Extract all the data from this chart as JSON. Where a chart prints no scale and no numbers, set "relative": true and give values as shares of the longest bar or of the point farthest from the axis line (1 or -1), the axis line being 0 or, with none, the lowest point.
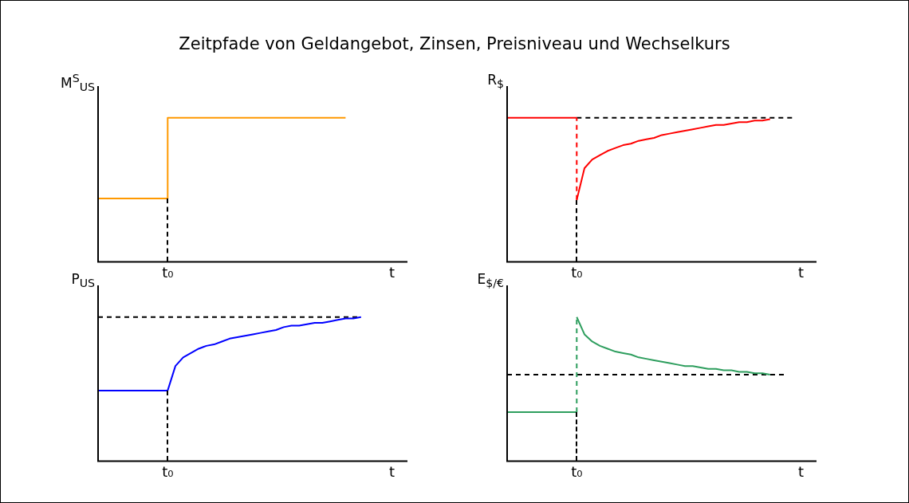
{
  "chart_data": [
    {
      "type": "step",
      "title": "Zeitpfade von Geldangebot, Zinsen, Preisniveau und Wechselkurs",
      "ylabel": "M$^{S}$$_{US}$",
      "relative": true,
      "categories": [
        null,
        null,
        null,
        null,
        null,
        null,
        null,
        null,
        null,
        "t₀",
        null,
        null,
        null,
        null,
        null,
        null,
        null,
        null,
        null,
        null,
        null,
        null,
        null,
        null,
        null,
        null,
        null,
        null,
        null,
        null,
        null,
        null,
        null,
        null,
        null,
        null,
        null,
        null,
        "t",
        null,
        null
      ],
      "series": [
        {
          "color": "#ff9900",
          "values": [
            0.44,
            0.44,
            0.44,
            0.44,
            0.44,
            0.44,
            0.44,
            0.44,
            0.44,
            1,
            1,
            1,
            1,
            1,
            1,
            1,
            1,
            1,
            1,
            1,
            1,
            1,
            1,
            1,
            1,
            1,
            1,
            1,
            1,
            1,
            1,
            1,
            1,
            null,
            null,
            null,
            null,
            null,
            null,
            null,
            null
          ]
        }
      ]
    },
    {
      "type": "line",
      "ylabel": "R$_{$}$",
      "relative": true,
      "categories": [
        null,
        null,
        null,
        null,
        null,
        null,
        null,
        null,
        null,
        "t₀",
        null,
        null,
        null,
        null,
        null,
        null,
        null,
        null,
        null,
        null,
        null,
        null,
        null,
        null,
        null,
        null,
        null,
        null,
        null,
        null,
        null,
        null,
        null,
        null,
        null,
        null,
        null,
        null,
        "t",
        null,
        null
      ],
      "series": [
        {
          "color": "#ff0000",
          "values": [
            1,
            1,
            1,
            1,
            1,
            1,
            1,
            1,
            1,
            1,
            null,
            null,
            null,
            null,
            null,
            null,
            null,
            null,
            null,
            null,
            null,
            null,
            null,
            null,
            null,
            null,
            null,
            null,
            null,
            null,
            null,
            null,
            null,
            null,
            null,
            null,
            null,
            null,
            null,
            null,
            null
          ]
        },
        {
          "color": "#ff0000",
          "values": [
            null,
            null,
            null,
            null,
            null,
            null,
            null,
            null,
            null,
            0.43,
            0.65,
            0.71,
            0.74,
            0.77,
            0.79,
            0.81,
            0.82,
            0.84,
            0.85,
            0.86,
            0.88,
            0.89,
            0.9,
            0.91,
            0.92,
            0.93,
            0.94,
            0.95,
            0.95,
            0.96,
            0.97,
            0.97,
            0.98,
            0.98,
            0.99,
            null,
            null,
            null,
            null,
            null,
            null
          ]
        },
        {
          "color": "#000000",
          "line_style": "dashed",
          "values": [
            null,
            null,
            null,
            null,
            null,
            null,
            null,
            null,
            null,
            1,
            1,
            1,
            1,
            1,
            1,
            1,
            1,
            1,
            1,
            1,
            1,
            1,
            1,
            1,
            1,
            1,
            1,
            1,
            1,
            1,
            1,
            1,
            1,
            1,
            1,
            1,
            1,
            1,
            null,
            null,
            null
          ]
        }
      ]
    },
    {
      "type": "line",
      "ylabel": "P$_{US}$",
      "relative": true,
      "categories": [
        null,
        null,
        null,
        null,
        null,
        null,
        null,
        null,
        null,
        "t₀",
        null,
        null,
        null,
        null,
        null,
        null,
        null,
        null,
        null,
        null,
        null,
        null,
        null,
        null,
        null,
        null,
        null,
        null,
        null,
        null,
        null,
        null,
        null,
        null,
        null,
        null,
        null,
        null,
        "t",
        null,
        null
      ],
      "series": [
        {
          "color": "#0000ff",
          "values": [
            0.49,
            0.49,
            0.49,
            0.49,
            0.49,
            0.49,
            0.49,
            0.49,
            0.49,
            0.49,
            null,
            null,
            null,
            null,
            null,
            null,
            null,
            null,
            null,
            null,
            null,
            null,
            null,
            null,
            null,
            null,
            null,
            null,
            null,
            null,
            null,
            null,
            null,
            null,
            null,
            null,
            null,
            null,
            null,
            null,
            null
          ]
        },
        {
          "color": "#0000ff",
          "values": [
            null,
            null,
            null,
            null,
            null,
            null,
            null,
            null,
            null,
            0.49,
            0.66,
            0.72,
            0.75,
            0.78,
            0.8,
            0.81,
            0.83,
            0.85,
            0.86,
            0.87,
            0.88,
            0.89,
            0.9,
            0.91,
            0.93,
            0.94,
            0.94,
            0.95,
            0.96,
            0.96,
            0.97,
            0.98,
            0.99,
            0.99,
            1,
            null,
            null,
            null,
            null,
            null,
            null
          ]
        },
        {
          "color": "#000000",
          "line_style": "dashed",
          "values": [
            1,
            1,
            1,
            1,
            1,
            1,
            1,
            1,
            1,
            1,
            1,
            1,
            1,
            1,
            1,
            1,
            1,
            1,
            1,
            1,
            1,
            1,
            1,
            1,
            1,
            1,
            1,
            1,
            1,
            1,
            1,
            1,
            1,
            1,
            1,
            null,
            null,
            null,
            null,
            null,
            null
          ]
        }
      ]
    },
    {
      "type": "line",
      "ylabel": "E$_{$/€}$",
      "relative": true,
      "categories": [
        null,
        null,
        null,
        null,
        null,
        null,
        null,
        null,
        null,
        "t₀",
        null,
        null,
        null,
        null,
        null,
        null,
        null,
        null,
        null,
        null,
        null,
        null,
        null,
        null,
        null,
        null,
        null,
        null,
        null,
        null,
        null,
        null,
        null,
        null,
        null,
        null,
        null,
        null,
        "t",
        null,
        null
      ],
      "series": [
        {
          "color": "#2e9e5e",
          "values": [
            0.34,
            0.34,
            0.34,
            0.34,
            0.34,
            0.34,
            0.34,
            0.34,
            0.34,
            0.34,
            null,
            null,
            null,
            null,
            null,
            null,
            null,
            null,
            null,
            null,
            null,
            null,
            null,
            null,
            null,
            null,
            null,
            null,
            null,
            null,
            null,
            null,
            null,
            null,
            null,
            null,
            null,
            null,
            null,
            null,
            null
          ]
        },
        {
          "color": "#2e9e5e",
          "values": [
            null,
            null,
            null,
            null,
            null,
            null,
            null,
            null,
            null,
            1,
            0.88,
            0.83,
            0.8,
            0.78,
            0.76,
            0.75,
            0.74,
            0.72,
            0.71,
            0.7,
            0.69,
            0.68,
            0.67,
            0.66,
            0.66,
            0.65,
            0.64,
            0.64,
            0.63,
            0.63,
            0.62,
            0.62,
            0.61,
            0.61,
            0.6,
            null,
            null,
            null,
            null,
            null,
            null
          ]
        },
        {
          "color": "#000000",
          "line_style": "dashed",
          "values": [
            0.6,
            0.6,
            0.6,
            0.6,
            0.6,
            0.6,
            0.6,
            0.6,
            0.6,
            0.6,
            0.6,
            0.6,
            0.6,
            0.6,
            0.6,
            0.6,
            0.6,
            0.6,
            0.6,
            0.6,
            0.6,
            0.6,
            0.6,
            0.6,
            0.6,
            0.6,
            0.6,
            0.6,
            0.6,
            0.6,
            0.6,
            0.6,
            0.6,
            0.6,
            0.6,
            0.6,
            0.6,
            null,
            null,
            null,
            null
          ]
        }
      ]
    }
  ]
}
